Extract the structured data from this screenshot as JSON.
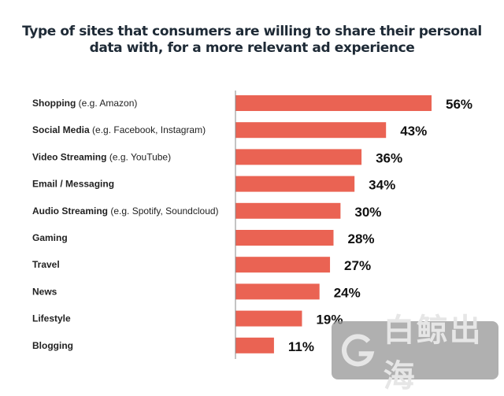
{
  "chart_data": {
    "type": "bar",
    "orientation": "horizontal",
    "title": "Type of sites that consumers are willing to share their personal data with,  for a more relevant ad experience",
    "title_lines": [
      "Type of sites that consumers are willing to share their personal",
      "data with,  for a more relevant ad experience"
    ],
    "categories": [
      {
        "bold": "Shopping",
        "detail": " (e.g. Amazon)"
      },
      {
        "bold": "Social Media",
        "detail": " (e.g. Facebook, Instagram)"
      },
      {
        "bold": "Video Streaming",
        "detail": " (e.g. YouTube)"
      },
      {
        "bold": "Email / Messaging",
        "detail": ""
      },
      {
        "bold": "Audio Streaming",
        "detail": " (e.g. Spotify, Soundcloud)"
      },
      {
        "bold": "Gaming",
        "detail": ""
      },
      {
        "bold": "Travel",
        "detail": ""
      },
      {
        "bold": "News",
        "detail": ""
      },
      {
        "bold": "Lifestyle",
        "detail": ""
      },
      {
        "bold": "Blogging",
        "detail": ""
      }
    ],
    "values": [
      56,
      43,
      36,
      34,
      30,
      28,
      27,
      24,
      19,
      11
    ],
    "value_suffix": "%",
    "xlim": [
      0,
      56
    ],
    "grid": false,
    "bar_color": "#ea6353"
  },
  "watermark": {
    "text": "白鲸出海"
  }
}
